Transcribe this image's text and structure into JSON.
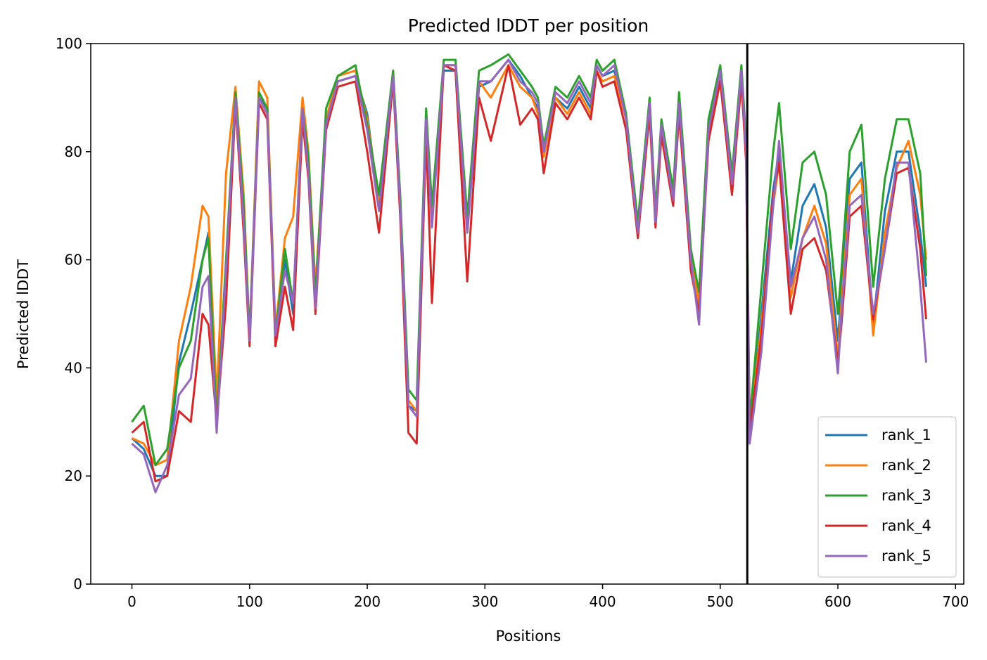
{
  "chart_data": {
    "type": "line",
    "title": "Predicted lDDT per position",
    "xlabel": "Positions",
    "ylabel": "Predicted lDDT",
    "xlim": [
      -35,
      707
    ],
    "ylim": [
      0,
      100
    ],
    "xticks": [
      0,
      100,
      200,
      300,
      400,
      500,
      600,
      700
    ],
    "yticks": [
      0,
      20,
      40,
      60,
      80,
      100
    ],
    "grid": false,
    "legend_position": "lower right",
    "vline_x": 523,
    "series": [
      {
        "name": "rank_1",
        "color": "#1f77b4",
        "x": [
          0,
          10,
          20,
          30,
          40,
          50,
          60,
          65,
          72,
          80,
          88,
          95,
          100,
          108,
          115,
          122,
          130,
          137,
          145,
          150,
          156,
          165,
          175,
          190,
          200,
          210,
          222,
          228,
          235,
          242,
          250,
          255,
          265,
          275,
          285,
          295,
          305,
          320,
          330,
          340,
          345,
          350,
          360,
          370,
          380,
          390,
          395,
          400,
          410,
          420,
          430,
          440,
          445,
          450,
          460,
          465,
          475,
          482,
          490,
          500,
          510,
          518,
          522,
          525,
          535,
          545,
          550,
          560,
          570,
          580,
          590,
          600,
          603,
          610,
          620,
          630,
          640,
          650,
          660,
          670,
          675
        ],
        "y": [
          27,
          25,
          20,
          20,
          41,
          50,
          60,
          65,
          32,
          55,
          90,
          70,
          45,
          90,
          88,
          45,
          60,
          50,
          87,
          78,
          52,
          85,
          93,
          94,
          87,
          70,
          94,
          70,
          33,
          32,
          84,
          68,
          95,
          95,
          65,
          92,
          93,
          97,
          94,
          90,
          88,
          80,
          90,
          88,
          92,
          88,
          96,
          94,
          95,
          86,
          66,
          89,
          68,
          85,
          72,
          90,
          60,
          50,
          85,
          95,
          75,
          95,
          80,
          27,
          50,
          73,
          80,
          56,
          70,
          74,
          66,
          45,
          54,
          75,
          78,
          48,
          69,
          80,
          80,
          65,
          55
        ]
      },
      {
        "name": "rank_2",
        "color": "#ff7f0e",
        "x": [
          0,
          10,
          20,
          30,
          40,
          50,
          60,
          65,
          72,
          80,
          88,
          95,
          100,
          108,
          115,
          122,
          130,
          137,
          145,
          150,
          156,
          165,
          175,
          190,
          200,
          210,
          222,
          228,
          235,
          242,
          250,
          255,
          265,
          275,
          285,
          295,
          305,
          320,
          330,
          340,
          345,
          350,
          360,
          370,
          380,
          390,
          395,
          400,
          410,
          420,
          430,
          440,
          445,
          450,
          460,
          465,
          475,
          482,
          490,
          500,
          510,
          518,
          522,
          525,
          535,
          545,
          550,
          560,
          570,
          580,
          590,
          600,
          603,
          610,
          620,
          630,
          640,
          650,
          660,
          670,
          675
        ],
        "y": [
          27,
          26,
          22,
          23,
          45,
          55,
          70,
          68,
          34,
          76,
          92,
          72,
          46,
          93,
          90,
          47,
          64,
          68,
          90,
          80,
          55,
          86,
          94,
          95,
          86,
          71,
          95,
          71,
          34,
          32,
          85,
          69,
          96,
          96,
          66,
          93,
          90,
          96,
          92,
          90,
          87,
          79,
          90,
          87,
          91,
          87,
          95,
          93,
          94,
          86,
          65,
          88,
          67,
          84,
          70,
          88,
          60,
          52,
          83,
          94,
          73,
          94,
          79,
          28,
          48,
          70,
          78,
          53,
          64,
          70,
          63,
          42,
          52,
          72,
          75,
          46,
          65,
          77,
          82,
          72,
          60
        ]
      },
      {
        "name": "rank_3",
        "color": "#2ca02c",
        "x": [
          0,
          10,
          20,
          30,
          40,
          50,
          60,
          65,
          72,
          80,
          88,
          95,
          100,
          108,
          115,
          122,
          130,
          137,
          145,
          150,
          156,
          165,
          175,
          190,
          200,
          210,
          222,
          228,
          235,
          242,
          250,
          255,
          265,
          275,
          285,
          295,
          305,
          320,
          330,
          340,
          345,
          350,
          360,
          370,
          380,
          390,
          395,
          400,
          410,
          420,
          430,
          440,
          445,
          450,
          460,
          465,
          475,
          482,
          490,
          500,
          510,
          518,
          522,
          525,
          535,
          545,
          550,
          560,
          570,
          580,
          590,
          600,
          603,
          610,
          620,
          630,
          640,
          650,
          660,
          670,
          675
        ],
        "y": [
          30,
          33,
          22,
          25,
          40,
          45,
          60,
          64,
          30,
          60,
          91,
          70,
          46,
          91,
          88,
          46,
          62,
          52,
          88,
          79,
          53,
          88,
          94,
          96,
          85,
          72,
          95,
          72,
          36,
          34,
          88,
          70,
          97,
          97,
          68,
          95,
          96,
          98,
          95,
          92,
          90,
          81,
          92,
          90,
          94,
          90,
          97,
          95,
          97,
          87,
          67,
          90,
          69,
          86,
          73,
          91,
          62,
          54,
          86,
          96,
          76,
          96,
          82,
          30,
          55,
          80,
          89,
          62,
          78,
          80,
          72,
          50,
          58,
          80,
          85,
          55,
          75,
          86,
          86,
          76,
          57
        ]
      },
      {
        "name": "rank_4",
        "color": "#d62728",
        "x": [
          0,
          10,
          20,
          30,
          40,
          50,
          60,
          65,
          72,
          80,
          88,
          95,
          100,
          108,
          115,
          122,
          130,
          137,
          145,
          150,
          156,
          165,
          175,
          190,
          200,
          210,
          222,
          228,
          235,
          242,
          250,
          255,
          265,
          275,
          285,
          295,
          305,
          320,
          330,
          340,
          345,
          350,
          360,
          370,
          380,
          390,
          395,
          400,
          410,
          420,
          430,
          440,
          445,
          450,
          460,
          465,
          475,
          482,
          490,
          500,
          510,
          518,
          522,
          525,
          535,
          545,
          550,
          560,
          570,
          580,
          590,
          600,
          603,
          610,
          620,
          630,
          640,
          650,
          660,
          670,
          675
        ],
        "y": [
          28,
          30,
          19,
          20,
          32,
          30,
          50,
          48,
          30,
          52,
          89,
          65,
          44,
          89,
          86,
          44,
          55,
          47,
          86,
          75,
          50,
          84,
          92,
          93,
          80,
          65,
          93,
          68,
          28,
          26,
          83,
          52,
          96,
          95,
          56,
          90,
          82,
          96,
          85,
          88,
          86,
          76,
          89,
          86,
          90,
          86,
          95,
          92,
          93,
          84,
          64,
          87,
          66,
          83,
          70,
          87,
          58,
          50,
          82,
          93,
          72,
          93,
          78,
          28,
          46,
          72,
          78,
          50,
          62,
          64,
          58,
          41,
          48,
          68,
          70,
          49,
          62,
          76,
          77,
          62,
          49
        ]
      },
      {
        "name": "rank_5",
        "color": "#9467bd",
        "x": [
          0,
          10,
          20,
          30,
          40,
          50,
          60,
          65,
          72,
          80,
          88,
          95,
          100,
          108,
          115,
          122,
          130,
          137,
          145,
          150,
          156,
          165,
          175,
          190,
          200,
          210,
          222,
          228,
          235,
          242,
          250,
          255,
          265,
          275,
          285,
          295,
          305,
          320,
          330,
          340,
          345,
          350,
          360,
          370,
          380,
          390,
          395,
          400,
          410,
          420,
          430,
          440,
          445,
          450,
          460,
          465,
          475,
          482,
          490,
          500,
          510,
          518,
          522,
          525,
          535,
          545,
          550,
          560,
          570,
          580,
          590,
          600,
          603,
          610,
          620,
          630,
          640,
          650,
          660,
          670,
          675
        ],
        "y": [
          26,
          24,
          17,
          22,
          35,
          38,
          55,
          57,
          28,
          58,
          90,
          67,
          45,
          90,
          87,
          46,
          58,
          52,
          88,
          76,
          51,
          85,
          93,
          94,
          84,
          69,
          94,
          70,
          33,
          31,
          86,
          66,
          96,
          96,
          65,
          93,
          93,
          97,
          93,
          91,
          89,
          80,
          91,
          89,
          93,
          89,
          96,
          94,
          96,
          86,
          65,
          89,
          67,
          85,
          71,
          89,
          60,
          48,
          84,
          95,
          74,
          95,
          80,
          26,
          43,
          70,
          82,
          55,
          64,
          68,
          60,
          39,
          50,
          70,
          72,
          50,
          62,
          78,
          78,
          55,
          41
        ]
      }
    ]
  }
}
